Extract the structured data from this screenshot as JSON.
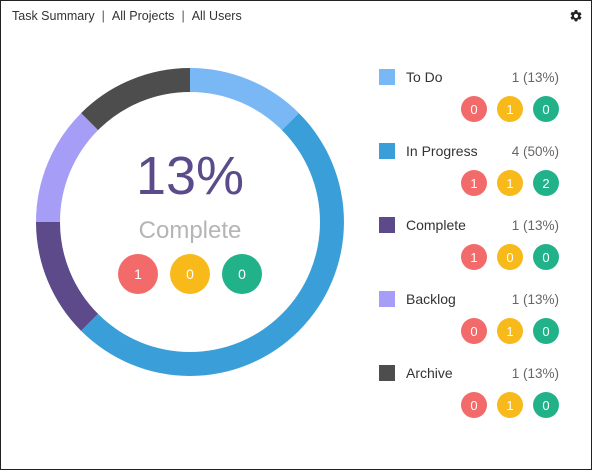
{
  "header": {
    "title": "Task Summary",
    "filter_projects": "All Projects",
    "filter_users": "All Users",
    "separator": "|"
  },
  "center": {
    "percent_label": "13%",
    "status_label": "Complete",
    "badges": [
      "1",
      "0",
      "0"
    ]
  },
  "colors": {
    "badge_red": "#f26a6a",
    "badge_yellow": "#f8b91a",
    "badge_green": "#22b28a",
    "percent_text": "#5b4b8a"
  },
  "chart_data": {
    "type": "pie",
    "categories": [
      "To Do",
      "In Progress",
      "Complete",
      "Backlog",
      "Archive"
    ],
    "values": [
      1,
      4,
      1,
      1,
      1
    ],
    "percentages": [
      13,
      50,
      13,
      13,
      13
    ],
    "colors": [
      "#7ab8f5",
      "#3a9fd8",
      "#5d4a8a",
      "#a69ef6",
      "#4d4d4d"
    ],
    "legend_placement": "right",
    "series": [
      {
        "name": "To Do",
        "count_label": "1 (13%)",
        "badges": [
          "0",
          "1",
          "0"
        ]
      },
      {
        "name": "In Progress",
        "count_label": "4 (50%)",
        "badges": [
          "1",
          "1",
          "2"
        ]
      },
      {
        "name": "Complete",
        "count_label": "1 (13%)",
        "badges": [
          "1",
          "0",
          "0"
        ]
      },
      {
        "name": "Backlog",
        "count_label": "1 (13%)",
        "badges": [
          "0",
          "1",
          "0"
        ]
      },
      {
        "name": "Archive",
        "count_label": "1 (13%)",
        "badges": [
          "0",
          "1",
          "0"
        ]
      }
    ]
  }
}
